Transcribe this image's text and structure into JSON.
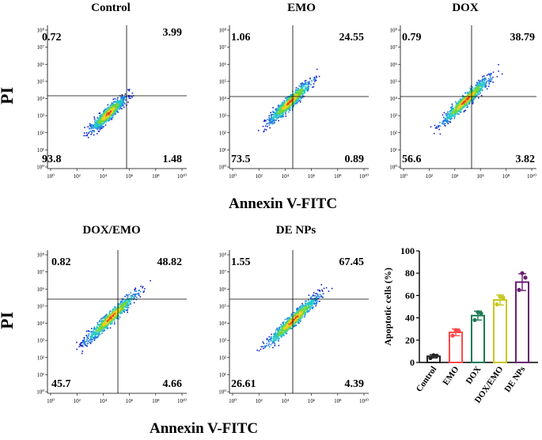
{
  "y_axis_label": "PI",
  "x_axis_label": "Annexin V-FITC",
  "chart_data": [
    {
      "type": "scatter",
      "title": "Control",
      "xlabel": "Annexin V-FITC",
      "ylabel": "PI",
      "quadrants": {
        "ul": "0.72",
        "ur": "3.99",
        "ll": "93.8",
        "lr": "1.48"
      },
      "tick_labels": [
        "10⁰",
        "10²",
        "10⁴",
        "10⁶",
        "10⁸",
        "10¹⁰"
      ]
    },
    {
      "type": "scatter",
      "title": "EMO",
      "xlabel": "Annexin V-FITC",
      "ylabel": "PI",
      "quadrants": {
        "ul": "1.06",
        "ur": "24.55",
        "ll": "73.5",
        "lr": "0.89"
      },
      "tick_labels": [
        "10⁰",
        "10²",
        "10⁴",
        "10⁶",
        "10⁸",
        "10¹⁰"
      ]
    },
    {
      "type": "scatter",
      "title": "DOX",
      "xlabel": "Annexin V-FITC",
      "ylabel": "PI",
      "quadrants": {
        "ul": "0.79",
        "ur": "38.79",
        "ll": "56.6",
        "lr": "3.82"
      },
      "tick_labels": [
        "10⁰",
        "10²",
        "10⁴",
        "10⁶",
        "10⁸",
        "10¹⁰"
      ]
    },
    {
      "type": "scatter",
      "title": "DOX/EMO",
      "xlabel": "Annexin V-FITC",
      "ylabel": "PI",
      "quadrants": {
        "ul": "0.82",
        "ur": "48.82",
        "ll": "45.7",
        "lr": "4.66"
      },
      "tick_labels": [
        "10⁰",
        "10²",
        "10⁴",
        "10⁶",
        "10⁸",
        "10¹⁰"
      ]
    },
    {
      "type": "scatter",
      "title": "DE NPs",
      "xlabel": "Annexin V-FITC",
      "ylabel": "PI",
      "quadrants": {
        "ul": "1.55",
        "ur": "67.45",
        "ll": "26.61",
        "lr": "4.39"
      },
      "tick_labels": [
        "10⁰",
        "10²",
        "10⁴",
        "10⁶",
        "10⁸",
        "10¹⁰"
      ]
    },
    {
      "type": "bar",
      "title": "",
      "xlabel": "",
      "ylabel": "Apoptotic cells (%)",
      "categories": [
        "Control",
        "EMO",
        "DOX",
        "DOX/EMO",
        "DE NPs"
      ],
      "values": [
        5.5,
        27,
        42,
        56,
        72
      ],
      "points": [
        [
          4,
          6,
          6.5
        ],
        [
          24,
          28,
          29
        ],
        [
          38,
          44,
          45
        ],
        [
          52,
          58,
          59
        ],
        [
          65,
          76,
          80
        ]
      ],
      "errors": [
        1.5,
        3,
        4,
        4.5,
        7.5
      ],
      "colors": [
        "#222222",
        "#ff4a4a",
        "#1f7a56",
        "#c8c81e",
        "#6a1f74"
      ],
      "ylim": [
        0,
        100
      ],
      "yticks": [
        "0",
        "20",
        "40",
        "60",
        "80",
        "100"
      ]
    }
  ]
}
